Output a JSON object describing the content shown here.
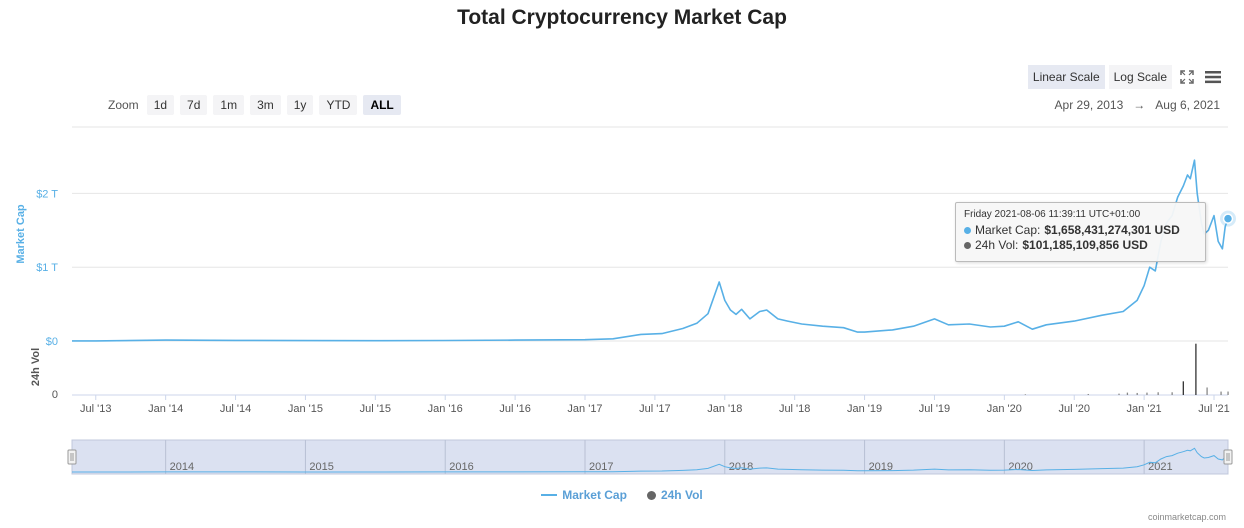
{
  "title": "Total Cryptocurrency Market Cap",
  "zoom": {
    "label": "Zoom",
    "buttons": [
      "1d",
      "7d",
      "1m",
      "3m",
      "1y",
      "YTD",
      "ALL"
    ],
    "active": "ALL"
  },
  "range": {
    "from": "Apr 29, 2013",
    "arrow": "→",
    "to": "Aug 6, 2021"
  },
  "scale": {
    "linear": "Linear Scale",
    "log": "Log Scale",
    "active": "Linear Scale"
  },
  "icons": {
    "fullscreen": "fullscreen-icon",
    "menu": "menu-icon"
  },
  "tooltip": {
    "date": "Friday 2021-08-06 11:39:11 UTC+01:00",
    "market_cap_label": "Market Cap:",
    "market_cap_value": "$1,658,431,274,301 USD",
    "vol_label": "24h Vol:",
    "vol_value": "$101,185,109,856 USD"
  },
  "legend": {
    "market_cap": "Market Cap",
    "vol": "24h Vol"
  },
  "credits": "coinmarketcap.com",
  "colors": {
    "market_cap": "#58b0e6",
    "vol": "#666666",
    "navigator_mask": "#d5dcef",
    "active_button": "#e6e9f2"
  },
  "chart_data": {
    "type": "line",
    "title": "Total Cryptocurrency Market Cap",
    "ylabel": "Market Cap",
    "ylabel2": "24h Vol",
    "yticks": [
      "$0",
      "$1 T",
      "$2 T"
    ],
    "ylim_trillions": [
      0,
      2.9
    ],
    "vol_ticks": [
      "0"
    ],
    "xticks": [
      "Jul '13",
      "Jan '14",
      "Jul '14",
      "Jan '15",
      "Jul '15",
      "Jan '16",
      "Jul '16",
      "Jan '17",
      "Jul '17",
      "Jan '18",
      "Jul '18",
      "Jan '19",
      "Jul '19",
      "Jan '20",
      "Jul '20",
      "Jan '21",
      "Jul '21"
    ],
    "navigator_years": [
      "2014",
      "2015",
      "2016",
      "2017",
      "2018",
      "2019",
      "2020",
      "2021"
    ],
    "series": [
      {
        "name": "Market Cap",
        "unit": "trillion USD",
        "x": [
          2013.33,
          2013.5,
          2014.0,
          2014.5,
          2015.0,
          2015.5,
          2016.0,
          2016.5,
          2017.0,
          2017.2,
          2017.4,
          2017.55,
          2017.7,
          2017.8,
          2017.88,
          2017.96,
          2018.0,
          2018.04,
          2018.08,
          2018.12,
          2018.18,
          2018.25,
          2018.3,
          2018.38,
          2018.45,
          2018.55,
          2018.7,
          2018.85,
          2018.95,
          2019.0,
          2019.2,
          2019.35,
          2019.5,
          2019.6,
          2019.75,
          2019.9,
          2020.0,
          2020.1,
          2020.2,
          2020.3,
          2020.5,
          2020.7,
          2020.85,
          2020.95,
          2021.0,
          2021.04,
          2021.08,
          2021.12,
          2021.16,
          2021.2,
          2021.24,
          2021.28,
          2021.31,
          2021.33,
          2021.36,
          2021.38,
          2021.41,
          2021.43,
          2021.46,
          2021.5,
          2021.53,
          2021.56,
          2021.58,
          2021.6
        ],
        "values": [
          0.0015,
          0.002,
          0.012,
          0.008,
          0.005,
          0.004,
          0.007,
          0.012,
          0.018,
          0.03,
          0.09,
          0.1,
          0.17,
          0.24,
          0.37,
          0.8,
          0.55,
          0.42,
          0.36,
          0.43,
          0.3,
          0.4,
          0.42,
          0.3,
          0.27,
          0.23,
          0.2,
          0.18,
          0.12,
          0.12,
          0.15,
          0.2,
          0.3,
          0.22,
          0.23,
          0.19,
          0.2,
          0.26,
          0.16,
          0.22,
          0.27,
          0.35,
          0.4,
          0.55,
          0.75,
          1.0,
          0.95,
          1.35,
          1.6,
          1.7,
          1.95,
          2.1,
          2.25,
          2.2,
          2.45,
          2.0,
          1.6,
          1.45,
          1.5,
          1.7,
          1.35,
          1.25,
          1.55,
          1.658
        ]
      },
      {
        "name": "24h Vol",
        "unit": "billion USD",
        "x": [
          2020.15,
          2020.6,
          2020.82,
          2020.88,
          2020.95,
          2021.02,
          2021.1,
          2021.2,
          2021.28,
          2021.37,
          2021.45,
          2021.55,
          2021.6
        ],
        "values": [
          20,
          30,
          40,
          70,
          60,
          70,
          80,
          80,
          400,
          1500,
          220,
          100,
          101
        ]
      }
    ]
  }
}
